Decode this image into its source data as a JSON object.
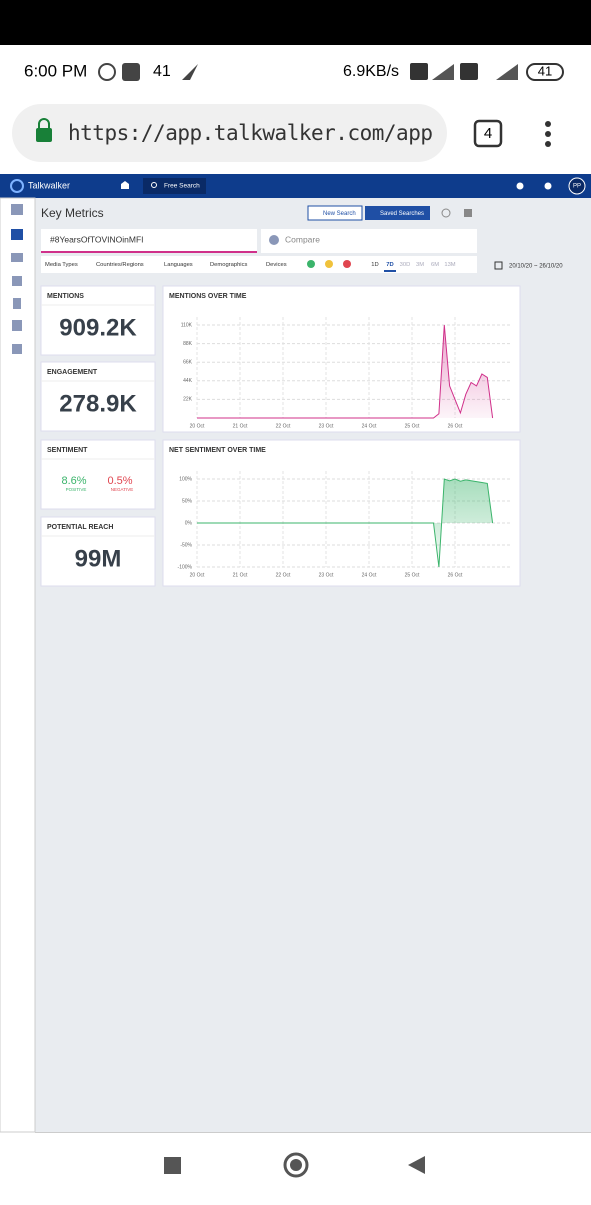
{
  "status_bar": {
    "time": "6:00 PM",
    "notification_count": "41",
    "network_speed": "6.9KB/s",
    "battery": "41"
  },
  "browser": {
    "url": "https://app.talkwalker.com/app",
    "tab_count": "4"
  },
  "app_header": {
    "brand": "Talkwalker",
    "search_button": "Free Search",
    "avatar": "PP"
  },
  "toolbar": {
    "title": "Key Metrics",
    "new_search": "New Search",
    "saved_searches": "Saved Searches"
  },
  "query": {
    "tag": "#8YearsOfTOVINOinMFI",
    "compare": "Compare"
  },
  "filters": {
    "dropdowns": [
      "Media Types",
      "Countries/Regions",
      "Languages",
      "Demographics",
      "Devices"
    ],
    "ranges": [
      "1D",
      "7D",
      "30D",
      "3M",
      "6M",
      "13M"
    ],
    "date_range": "20/10/20 ~ 26/10/20"
  },
  "metrics": {
    "mentions": {
      "label": "MENTIONS",
      "value": "909.2K"
    },
    "engagement": {
      "label": "ENGAGEMENT",
      "value": "278.9K"
    },
    "sentiment": {
      "label": "SENTIMENT",
      "positive": {
        "value": "8.6%",
        "label": "POSITIVE"
      },
      "negative": {
        "value": "0.5%",
        "label": "NEGATIVE"
      }
    },
    "potential_reach": {
      "label": "POTENTIAL REACH",
      "value": "99M"
    }
  },
  "charts": [
    {
      "type": "line",
      "title": "MENTIONS OVER TIME",
      "color": "#d0308a",
      "categories": [
        "20 Oct",
        null,
        null,
        null,
        null,
        null,
        null,
        null,
        "21 Oct",
        null,
        null,
        null,
        null,
        null,
        null,
        null,
        "22 Oct",
        null,
        null,
        null,
        null,
        null,
        null,
        null,
        "23 Oct",
        null,
        null,
        null,
        null,
        null,
        null,
        null,
        "24 Oct",
        null,
        null,
        null,
        null,
        null,
        null,
        null,
        "25 Oct",
        null,
        null,
        null,
        null,
        null,
        null,
        null,
        "26 Oct",
        null,
        null,
        null,
        null,
        null,
        null,
        null
      ],
      "values": [
        0,
        0,
        0,
        0,
        0,
        0,
        0,
        0,
        0,
        0,
        0,
        0,
        0,
        0,
        0,
        0,
        0,
        0,
        0,
        0,
        0,
        0,
        0,
        0,
        0,
        0,
        0,
        0,
        0,
        0,
        0,
        0,
        0,
        0,
        0,
        0,
        0,
        0,
        0,
        0,
        0,
        0,
        0,
        0,
        0,
        5000,
        110000,
        38000,
        22000,
        6000,
        28000,
        42000,
        38000,
        52000,
        48000,
        0
      ],
      "ylim": [
        0,
        110000
      ],
      "yticks": [
        {
          "value": 22000,
          "label": "22K"
        },
        {
          "value": 44000,
          "label": "44K"
        },
        {
          "value": 66000,
          "label": "66K"
        },
        {
          "value": 88000,
          "label": "88K"
        },
        {
          "value": 110000,
          "label": "110K"
        }
      ]
    },
    {
      "type": "line",
      "title": "NET SENTIMENT OVER TIME",
      "color": "#3bb46b",
      "categories": [
        "20 Oct",
        null,
        null,
        null,
        null,
        null,
        null,
        null,
        "21 Oct",
        null,
        null,
        null,
        null,
        null,
        null,
        null,
        "22 Oct",
        null,
        null,
        null,
        null,
        null,
        null,
        null,
        "23 Oct",
        null,
        null,
        null,
        null,
        null,
        null,
        null,
        "24 Oct",
        null,
        null,
        null,
        null,
        null,
        null,
        null,
        "25 Oct",
        null,
        null,
        null,
        null,
        null,
        null,
        null,
        "26 Oct",
        null,
        null,
        null,
        null,
        null,
        null,
        null
      ],
      "values": [
        0,
        0,
        0,
        0,
        0,
        0,
        0,
        0,
        0,
        0,
        0,
        0,
        0,
        0,
        0,
        0,
        0,
        0,
        0,
        0,
        0,
        0,
        0,
        0,
        0,
        0,
        0,
        0,
        0,
        0,
        0,
        0,
        0,
        0,
        0,
        0,
        0,
        0,
        0,
        0,
        0,
        0,
        0,
        0,
        0,
        -100,
        100,
        96,
        100,
        95,
        98,
        96,
        94,
        92,
        90,
        0
      ],
      "ylim": [
        -100,
        100
      ],
      "yticks": [
        {
          "value": -100,
          "label": "-100%"
        },
        {
          "value": -50,
          "label": "-50%"
        },
        {
          "value": 0,
          "label": "0%"
        },
        {
          "value": 50,
          "label": "50%"
        },
        {
          "value": 100,
          "label": "100%"
        }
      ]
    }
  ]
}
